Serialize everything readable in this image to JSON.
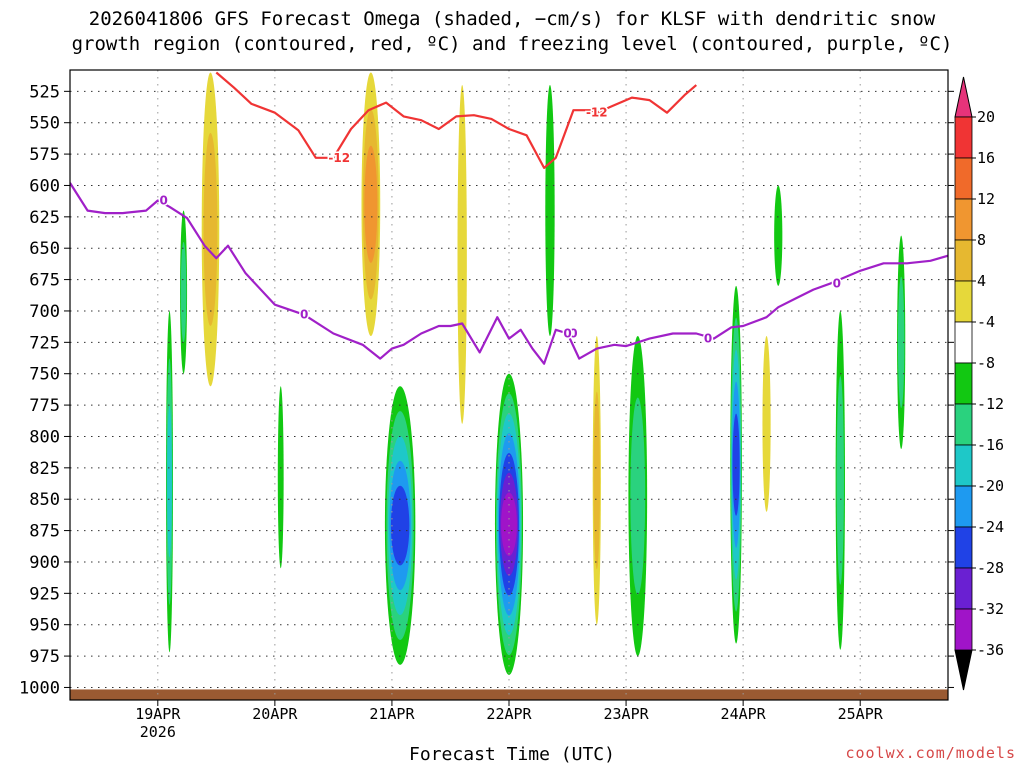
{
  "chart_data": {
    "type": "heatmap",
    "title_line1": "2026041806 GFS Forecast Omega (shaded, −cm/s) for KLSF with dendritic snow",
    "title_line2": "growth region (contoured, red, ºC) and freezing level (contoured, purple, ºC)",
    "xlabel": "Forecast Time (UTC)",
    "credit": "coolwx.com/models",
    "yaxis": {
      "unit": "hPa",
      "range": [
        1010,
        508
      ],
      "ticks": [
        525,
        550,
        575,
        600,
        625,
        650,
        675,
        700,
        725,
        750,
        775,
        800,
        825,
        850,
        875,
        900,
        925,
        950,
        975,
        1000
      ]
    },
    "xaxis": {
      "range_days": [
        -0.75,
        6.75
      ],
      "ticks": [
        {
          "day": 0,
          "label": "19APR",
          "sublabel": "2026"
        },
        {
          "day": 1,
          "label": "20APR"
        },
        {
          "day": 2,
          "label": "21APR"
        },
        {
          "day": 3,
          "label": "22APR"
        },
        {
          "day": 4,
          "label": "23APR"
        },
        {
          "day": 5,
          "label": "24APR"
        },
        {
          "day": 6,
          "label": "25APR"
        }
      ]
    },
    "colorbar": {
      "levels": [
        -36,
        -32,
        -28,
        -24,
        -20,
        -16,
        -12,
        -8,
        -4,
        4,
        8,
        12,
        16,
        20
      ],
      "labels": [
        "20",
        "16",
        "12",
        "8",
        "4",
        "-4",
        "-8",
        "-12",
        "-16",
        "-20",
        "-24",
        "-28",
        "-32",
        "-36"
      ],
      "colors_high_to_low": [
        "#e6337a",
        "#f03434",
        "#f06a2a",
        "#f09630",
        "#e6b830",
        "#e6d83a",
        "#ffffff",
        "#12c812",
        "#2ad27e",
        "#1ec8c8",
        "#1e9af0",
        "#2042e6",
        "#6a20d2",
        "#a014c8",
        "#a8a8a8",
        "#000000"
      ],
      "overflow_top_color": "#e6337a",
      "overflow_bottom_color": "#000000"
    },
    "ground_color": "#9a5a32",
    "omega_features": [
      {
        "day": 0.1,
        "p_top": 700,
        "p_bot": 972,
        "width": 0.06,
        "value": -13
      },
      {
        "day": 0.22,
        "p_top": 620,
        "p_bot": 750,
        "width": 0.06,
        "value": -9
      },
      {
        "day": 0.45,
        "p_top": 510,
        "p_bot": 760,
        "width": 0.15,
        "value": 9
      },
      {
        "day": 1.05,
        "p_top": 760,
        "p_bot": 905,
        "width": 0.05,
        "value": -6
      },
      {
        "day": 1.82,
        "p_top": 510,
        "p_bot": 720,
        "width": 0.16,
        "value": 13
      },
      {
        "day": 2.07,
        "p_top": 760,
        "p_bot": 982,
        "width": 0.26,
        "value": -21
      },
      {
        "day": 2.6,
        "p_top": 520,
        "p_bot": 790,
        "width": 0.08,
        "value": 6
      },
      {
        "day": 3.0,
        "p_top": 750,
        "p_bot": 990,
        "width": 0.24,
        "value": -30
      },
      {
        "day": 3.35,
        "p_top": 520,
        "p_bot": 720,
        "width": 0.08,
        "value": -6
      },
      {
        "day": 3.75,
        "p_top": 720,
        "p_bot": 950,
        "width": 0.07,
        "value": 9
      },
      {
        "day": 4.1,
        "p_top": 720,
        "p_bot": 975,
        "width": 0.16,
        "value": -9
      },
      {
        "day": 4.94,
        "p_top": 680,
        "p_bot": 965,
        "width": 0.1,
        "value": -21
      },
      {
        "day": 5.2,
        "p_top": 720,
        "p_bot": 860,
        "width": 0.07,
        "value": 7
      },
      {
        "day": 5.3,
        "p_top": 600,
        "p_bot": 680,
        "width": 0.07,
        "value": -7
      },
      {
        "day": 5.83,
        "p_top": 700,
        "p_bot": 970,
        "width": 0.08,
        "value": -11
      },
      {
        "day": 6.35,
        "p_top": 640,
        "p_bot": 810,
        "width": 0.07,
        "value": -9
      }
    ],
    "freezing_level_0C": {
      "color": "#a020c8",
      "label": "0",
      "label_days": [
        0.05,
        1.25,
        3.55,
        3.5,
        4.7,
        5.8
      ],
      "days": [
        -0.75,
        -0.6,
        -0.45,
        -0.3,
        -0.1,
        0.0,
        0.1,
        0.25,
        0.4,
        0.5,
        0.6,
        0.75,
        1.0,
        1.25,
        1.5,
        1.75,
        1.9,
        2.0,
        2.1,
        2.25,
        2.4,
        2.5,
        2.6,
        2.75,
        2.9,
        3.0,
        3.1,
        3.2,
        3.3,
        3.4,
        3.5,
        3.6,
        3.75,
        3.9,
        4.0,
        4.2,
        4.4,
        4.6,
        4.75,
        4.9,
        5.0,
        5.2,
        5.3,
        5.45,
        5.6,
        5.75,
        5.9,
        6.0,
        6.2,
        6.4,
        6.6,
        6.75
      ],
      "pressure": [
        598,
        620,
        622,
        622,
        620,
        612,
        617,
        626,
        648,
        658,
        648,
        670,
        695,
        703,
        718,
        727,
        738,
        730,
        727,
        718,
        712,
        712,
        710,
        733,
        705,
        722,
        715,
        730,
        742,
        715,
        718,
        738,
        730,
        727,
        728,
        722,
        718,
        718,
        722,
        713,
        712,
        705,
        697,
        690,
        683,
        678,
        672,
        668,
        662,
        662,
        660,
        656
      ]
    },
    "dgz_minus12C": {
      "color": "#f03434",
      "label": "-12",
      "label_days": [
        1.55,
        3.75
      ],
      "days": [
        0.5,
        0.65,
        0.8,
        1.0,
        1.2,
        1.35,
        1.5,
        1.65,
        1.8,
        1.95,
        2.1,
        2.25,
        2.4,
        2.55,
        2.7,
        2.85,
        3.0,
        3.15,
        3.3,
        3.4,
        3.55,
        3.7,
        3.75,
        3.9,
        4.05,
        4.2,
        4.35,
        4.5,
        4.6
      ],
      "pressure": [
        510,
        522,
        535,
        542,
        556,
        578,
        578,
        555,
        540,
        534,
        545,
        548,
        555,
        545,
        544,
        547,
        555,
        560,
        586,
        578,
        540,
        540,
        542,
        536,
        530,
        532,
        542,
        528,
        520
      ]
    }
  }
}
